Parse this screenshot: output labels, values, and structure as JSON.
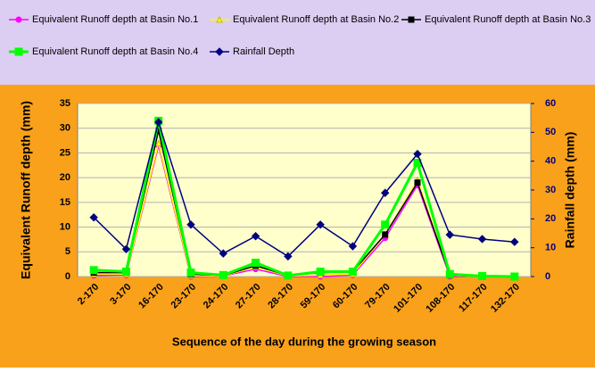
{
  "chart_data": {
    "type": "line",
    "y_label": "Equivalent Runoff depth (mm)",
    "y2_label": "Rainfall depth (mm)",
    "x_label": "Sequence of the day during the growing season",
    "categories": [
      "2-170",
      "3-170",
      "16-170",
      "23-170",
      "24-170",
      "27-170",
      "28-170",
      "59-170",
      "60-170",
      "79-170",
      "101-170",
      "108-170",
      "117-170",
      "132-170"
    ],
    "series": [
      {
        "name": "Equivalent Runoff depth at Basin No.1",
        "color": "#ff00ff",
        "marker": "circle",
        "values": [
          0.2,
          0.3,
          26.5,
          0,
          0.1,
          1.5,
          0,
          0,
          0.3,
          7.8,
          18.5,
          0,
          0.1,
          0.1
        ]
      },
      {
        "name": "Equivalent Runoff depth at Basin No.2",
        "color": "#ffff00",
        "marker": "triangle",
        "values": [
          0.5,
          0.5,
          27,
          0.2,
          0.1,
          2,
          0.1,
          0.3,
          0.5,
          8.5,
          19.5,
          0.2,
          0,
          0
        ]
      },
      {
        "name": "Equivalent Runoff depth at Basin No.3",
        "color": "#000000",
        "marker": "square",
        "values": [
          0.8,
          0.8,
          29.5,
          0.5,
          0.2,
          2.2,
          0.2,
          0.8,
          1,
          8.5,
          19,
          0.3,
          0,
          0
        ]
      },
      {
        "name": "Equivalent Runoff depth at Basin No.4",
        "color": "#00ff00",
        "marker": "square",
        "values": [
          1.3,
          1,
          31.5,
          0.8,
          0.3,
          2.8,
          0.2,
          1,
          1,
          10.5,
          23,
          0.5,
          0.1,
          0
        ]
      },
      {
        "name": "Rainfall Depth",
        "color": "#000080",
        "marker": "diamond",
        "axis": "y2",
        "values": [
          20.5,
          9.5,
          53.5,
          18,
          8,
          14,
          7,
          18,
          10.5,
          29,
          42.5,
          14.5,
          13,
          12
        ]
      }
    ],
    "ylim": [
      0,
      35
    ],
    "yticks": [
      0,
      5,
      10,
      15,
      20,
      25,
      30,
      35
    ],
    "y2lim": [
      0,
      60
    ],
    "y2ticks": [
      0,
      10,
      20,
      30,
      40,
      50,
      60
    ],
    "grid": true
  }
}
